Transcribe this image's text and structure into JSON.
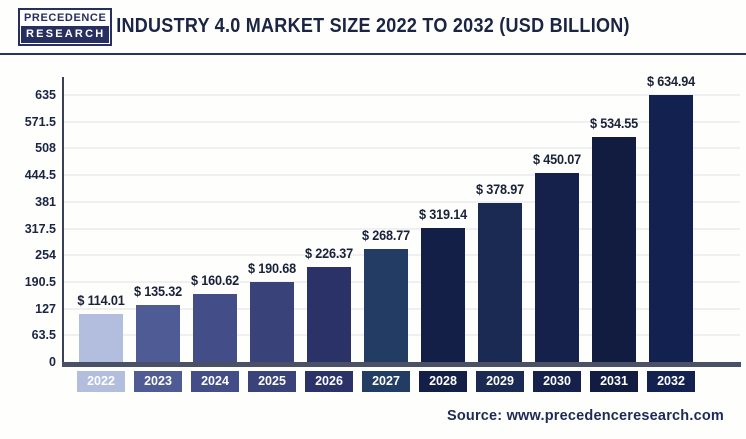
{
  "header": {
    "logo_line1": "PRECEDENCE",
    "logo_line2": "RESEARCH",
    "title": "INDUSTRY 4.0 MARKET SIZE 2022 TO 2032 (USD BILLION)"
  },
  "footer": {
    "source": "Source: www.precedenceresearch.com"
  },
  "colors": {
    "title_text": "#1b2442",
    "divider": "#2b3263",
    "logo_navy": "#272f60",
    "gridline": "#f0f0f2",
    "y_axis_line": "#3a4156",
    "x_axis_bar": "#4a5065",
    "value_label_text": "#1a2238",
    "x_label_text": "#ffffff",
    "footer_text": "#1d2a56",
    "background": "#ffffff"
  },
  "chart_data": {
    "type": "bar",
    "title": "Industry 4.0 Market Size 2022 to 2032 (USD Billion)",
    "unit": "USD Billion",
    "categories": [
      "2022",
      "2023",
      "2024",
      "2025",
      "2026",
      "2027",
      "2028",
      "2029",
      "2030",
      "2031",
      "2032"
    ],
    "values": [
      114.01,
      135.32,
      160.62,
      190.68,
      226.37,
      268.77,
      319.14,
      378.97,
      450.07,
      534.55,
      634.94
    ],
    "value_labels": [
      "$ 114.01",
      "$ 135.32",
      "$ 160.62",
      "$ 190.68",
      "$ 226.37",
      "$ 268.77",
      "$ 319.14",
      "$ 378.97",
      "$ 450.07",
      "$ 534.55",
      "$ 634.94"
    ],
    "bar_colors": [
      "#b3bedf",
      "#4e5b95",
      "#434e88",
      "#3a4379",
      "#2a3268",
      "#223c63",
      "#141f47",
      "#1b2a52",
      "#16214b",
      "#121c40",
      "#122150"
    ],
    "y_ticks": [
      0,
      63.5,
      127,
      190.5,
      254,
      317.5,
      381,
      444.5,
      508,
      571.5,
      635
    ],
    "ylim": [
      0,
      635
    ],
    "grid": true,
    "legend": null,
    "xlabel": "",
    "ylabel": ""
  }
}
